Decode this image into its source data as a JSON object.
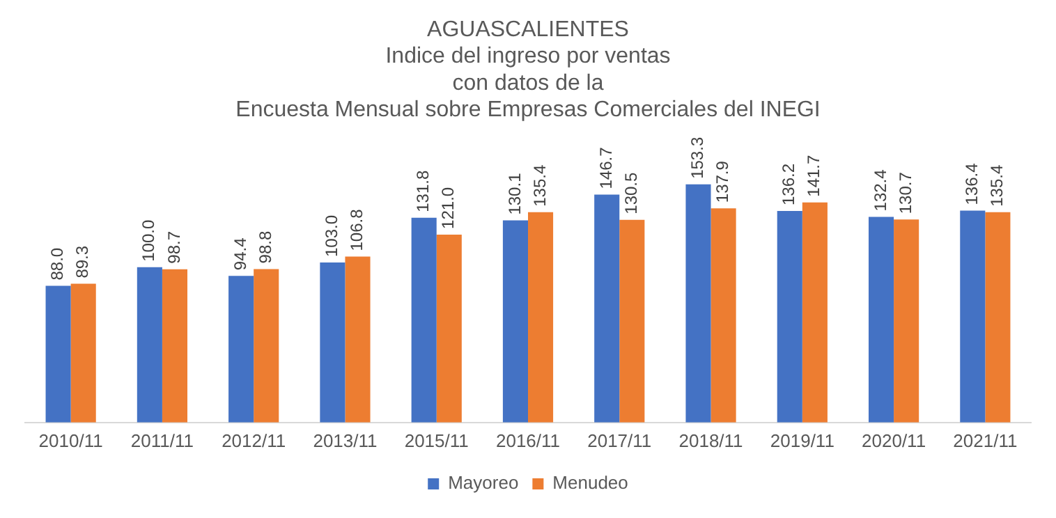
{
  "chart_data": {
    "type": "bar",
    "title": "AGUASCALIENTES",
    "subtitle": "Indice del ingreso por ventas\ncon datos de la\nEncuesta Mensual sobre Empresas Comerciales del INEGI",
    "categories": [
      "2010/11",
      "2011/11",
      "2012/11",
      "2013/11",
      "2015/11",
      "2016/11",
      "2017/11",
      "2018/11",
      "2019/11",
      "2020/11",
      "2021/11"
    ],
    "series": [
      {
        "name": "Mayoreo",
        "color": "#4472c4",
        "values": [
          88.0,
          100.0,
          94.4,
          103.0,
          131.8,
          130.1,
          146.7,
          153.3,
          136.2,
          132.4,
          136.4
        ],
        "value_labels": [
          "88.0",
          "100.0",
          "94.4",
          "103.0",
          "131.8",
          "130.1",
          "146.7",
          "153.3",
          "136.2",
          "132.4",
          "136.4"
        ]
      },
      {
        "name": "Menudeo",
        "color": "#ed7d31",
        "values": [
          89.3,
          98.7,
          98.8,
          106.8,
          121.0,
          135.4,
          130.5,
          137.9,
          141.7,
          130.7,
          135.4
        ],
        "value_labels": [
          "89.3",
          "98.7",
          "98.8",
          "106.8",
          "121.0",
          "135.4",
          "130.5",
          "137.9",
          "141.7",
          "130.7",
          "135.4"
        ]
      }
    ],
    "grid": false,
    "legend": "bottom"
  }
}
